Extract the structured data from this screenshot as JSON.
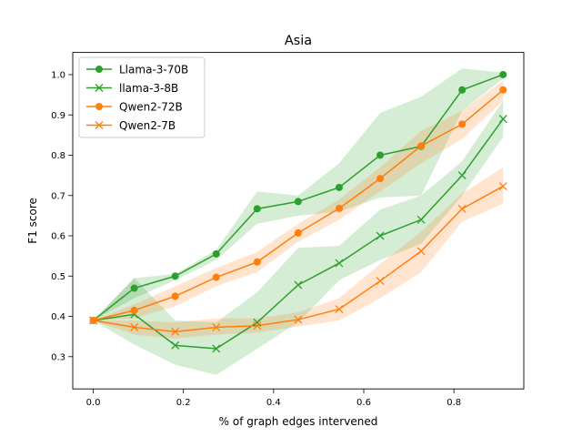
{
  "chart_data": {
    "type": "line",
    "title": "Asia",
    "xlabel": "% of graph edges intervened",
    "ylabel": "F1 score",
    "xlim": [
      -0.0455,
      0.955
    ],
    "ylim": [
      0.22,
      1.055
    ],
    "xticks": [
      0.0,
      0.2,
      0.4,
      0.6,
      0.8
    ],
    "xtick_labels": [
      "0.0",
      "0.2",
      "0.4",
      "0.6",
      "0.8"
    ],
    "yticks": [
      0.3,
      0.4,
      0.5,
      0.6,
      0.7,
      0.8,
      0.9,
      1.0
    ],
    "ytick_labels": [
      "0.3",
      "0.4",
      "0.5",
      "0.6",
      "0.7",
      "0.8",
      "0.9",
      "1.0"
    ],
    "legend_position": "upper-left",
    "grid": false,
    "x": [
      0.0,
      0.0909,
      0.1818,
      0.2727,
      0.3636,
      0.4545,
      0.5455,
      0.6364,
      0.7273,
      0.8182,
      0.9091
    ],
    "series": [
      {
        "name": "Llama-3-70B",
        "color": "#2ca02c",
        "marker": "circle",
        "values": [
          0.39,
          0.47,
          0.5,
          0.555,
          0.667,
          0.685,
          0.72,
          0.8,
          0.822,
          0.962,
          1.0
        ],
        "lower": [
          0.39,
          0.445,
          0.49,
          0.54,
          0.63,
          0.65,
          0.66,
          0.695,
          0.7,
          0.91,
          0.99
        ],
        "upper": [
          0.39,
          0.495,
          0.505,
          0.565,
          0.71,
          0.7,
          0.78,
          0.905,
          0.945,
          1.015,
          1.005
        ]
      },
      {
        "name": "llama-3-8B",
        "color": "#2ca02c",
        "marker": "x",
        "values": [
          0.39,
          0.405,
          0.328,
          0.32,
          0.385,
          0.478,
          0.532,
          0.6,
          0.64,
          0.75,
          0.89
        ],
        "lower": [
          0.39,
          0.33,
          0.28,
          0.255,
          0.32,
          0.385,
          0.49,
          0.54,
          0.58,
          0.7,
          0.845
        ],
        "upper": [
          0.39,
          0.495,
          0.39,
          0.385,
          0.46,
          0.57,
          0.575,
          0.665,
          0.7,
          0.785,
          0.935
        ]
      },
      {
        "name": "Qwen2-72B",
        "color": "#ff7f0e",
        "marker": "circle",
        "values": [
          0.39,
          0.415,
          0.45,
          0.497,
          0.535,
          0.607,
          0.668,
          0.742,
          0.823,
          0.877,
          0.962
        ],
        "lower": [
          0.39,
          0.395,
          0.425,
          0.475,
          0.51,
          0.585,
          0.64,
          0.71,
          0.78,
          0.84,
          0.935
        ],
        "upper": [
          0.39,
          0.43,
          0.475,
          0.52,
          0.56,
          0.63,
          0.69,
          0.77,
          0.86,
          0.91,
          0.985
        ]
      },
      {
        "name": "Qwen2-7B",
        "color": "#ff7f0e",
        "marker": "x",
        "values": [
          0.39,
          0.373,
          0.362,
          0.373,
          0.377,
          0.392,
          0.418,
          0.488,
          0.562,
          0.667,
          0.723
        ],
        "lower": [
          0.39,
          0.355,
          0.345,
          0.355,
          0.36,
          0.375,
          0.39,
          0.445,
          0.51,
          0.635,
          0.68
        ],
        "upper": [
          0.39,
          0.39,
          0.385,
          0.395,
          0.395,
          0.41,
          0.445,
          0.53,
          0.61,
          0.705,
          0.77
        ]
      }
    ]
  }
}
